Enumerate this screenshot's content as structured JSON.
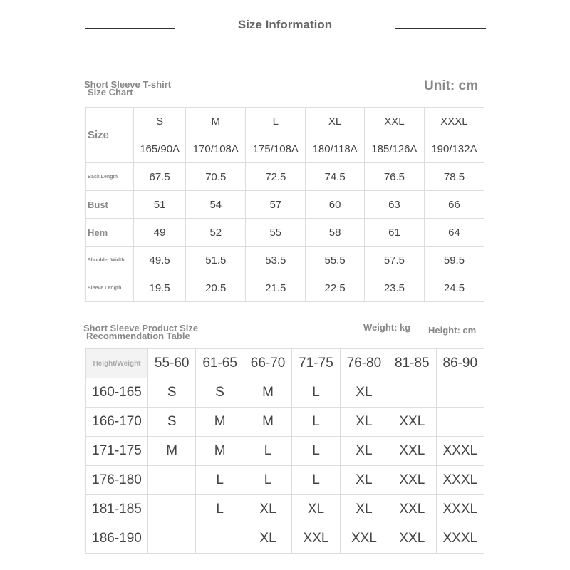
{
  "header": {
    "title": "Size Information"
  },
  "chart1": {
    "title_line1": "Short Sleeve T-shirt",
    "title_line2": "Size Chart",
    "unit": "Unit: cm",
    "size_label": "Size",
    "sizes": [
      "S",
      "M",
      "L",
      "XL",
      "XXL",
      "XXXL"
    ],
    "codes": [
      "165/90A",
      "170/108A",
      "175/108A",
      "180/118A",
      "185/126A",
      "190/132A"
    ],
    "rows": [
      {
        "label": "Back Length",
        "values": [
          "67.5",
          "70.5",
          "72.5",
          "74.5",
          "76.5",
          "78.5"
        ]
      },
      {
        "label": "Bust",
        "values": [
          "51",
          "54",
          "57",
          "60",
          "63",
          "66"
        ]
      },
      {
        "label": "Hem",
        "values": [
          "49",
          "52",
          "55",
          "58",
          "61",
          "64"
        ]
      },
      {
        "label": "Shoulder Width",
        "values": [
          "49.5",
          "51.5",
          "53.5",
          "55.5",
          "57.5",
          "59.5"
        ]
      },
      {
        "label": "Sleeve Length",
        "values": [
          "19.5",
          "20.5",
          "21.5",
          "22.5",
          "23.5",
          "24.5"
        ]
      }
    ]
  },
  "chart2": {
    "title_line1": "Short Sleeve Product Size",
    "title_line2": "Recommendation Table",
    "weight_unit": "Weight: kg",
    "height_unit": "Height: cm",
    "corner": "Height/Weight",
    "weights": [
      "55-60",
      "61-65",
      "66-70",
      "71-75",
      "76-80",
      "81-85",
      "86-90"
    ],
    "rows": [
      {
        "height": "160-165",
        "values": [
          "S",
          "S",
          "M",
          "L",
          "XL",
          "",
          ""
        ]
      },
      {
        "height": "166-170",
        "values": [
          "S",
          "M",
          "M",
          "L",
          "XL",
          "XXL",
          ""
        ]
      },
      {
        "height": "171-175",
        "values": [
          "M",
          "M",
          "L",
          "L",
          "XL",
          "XXL",
          "XXXL"
        ]
      },
      {
        "height": "176-180",
        "values": [
          "",
          "L",
          "L",
          "L",
          "XL",
          "XXL",
          "XXXL"
        ]
      },
      {
        "height": "181-185",
        "values": [
          "",
          "L",
          "XL",
          "XL",
          "XL",
          "XXL",
          "XXXL"
        ]
      },
      {
        "height": "186-190",
        "values": [
          "",
          "",
          "XL",
          "XXL",
          "XXL",
          "XXL",
          "XXXL"
        ]
      }
    ]
  }
}
